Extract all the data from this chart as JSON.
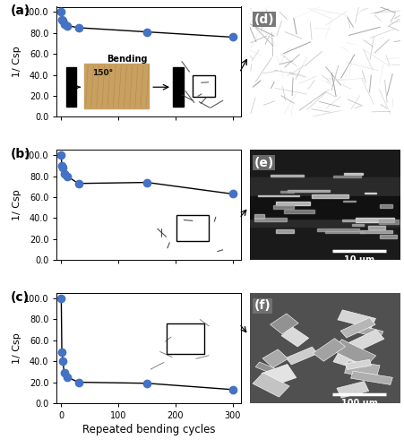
{
  "series_a": {
    "x": [
      0,
      1,
      3,
      5,
      10,
      30,
      150,
      300
    ],
    "y": [
      100.0,
      93.0,
      91.5,
      88.5,
      87.0,
      85.0,
      81.0,
      76.0
    ]
  },
  "series_b": {
    "x": [
      0,
      1,
      3,
      5,
      10,
      30,
      150,
      300
    ],
    "y": [
      100.0,
      90.0,
      88.0,
      82.0,
      80.0,
      73.0,
      74.0,
      63.0
    ]
  },
  "series_c": {
    "x": [
      0,
      1,
      3,
      5,
      10,
      30,
      150,
      300
    ],
    "y": [
      100.0,
      49.0,
      40.0,
      29.0,
      25.0,
      20.0,
      19.0,
      13.0
    ]
  },
  "line_color": "#000000",
  "marker_color": "#4472C4",
  "marker_size": 6,
  "ylabel": "1/ Csp",
  "xlabel": "Repeated bending cycles",
  "ylim": [
    0.0,
    105.0
  ],
  "xlim": [
    -8,
    315
  ],
  "yticks": [
    0.0,
    20.0,
    40.0,
    60.0,
    80.0,
    100.0
  ],
  "xticks": [
    0,
    100,
    200,
    300
  ],
  "panel_labels_left": [
    "(a)",
    "(b)",
    "(c)"
  ],
  "panel_labels_right": [
    "(d)",
    "(e)",
    "(f)"
  ],
  "sem_scale_labels": [
    "10 μm",
    "10 μm",
    "100 μm"
  ],
  "bending_text": "Bending",
  "bending_angle": "150°",
  "background_color": "#ffffff",
  "inset_a_bg": "#c8a060",
  "inset_b_bg": "#9a9070",
  "inset_c_bg": "#b09878",
  "sem_bg_a": "#787878",
  "sem_bg_b": "#686868",
  "sem_bg_c": "#707070"
}
